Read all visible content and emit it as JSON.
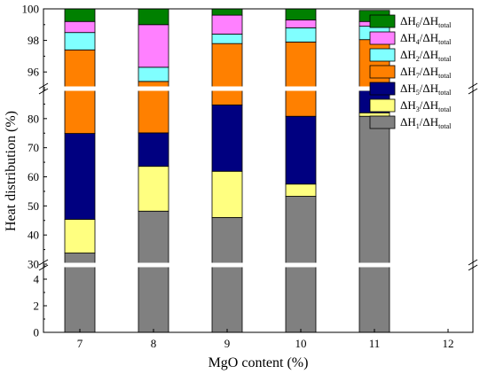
{
  "chart_data": {
    "type": "bar",
    "stacked": true,
    "xlabel": "MgO content (%)",
    "ylabel": "Heat distribution (%)",
    "categories": [
      "7",
      "8",
      "9",
      "10",
      "11"
    ],
    "x_ticks": [
      "7",
      "8",
      "9",
      "10",
      "11",
      "12"
    ],
    "axis_breaks": [
      [
        5,
        30
      ],
      [
        90,
        95
      ]
    ],
    "y_segments": [
      {
        "range": [
          0,
          5
        ],
        "ticks": [
          0,
          2,
          4
        ]
      },
      {
        "range": [
          30,
          90
        ],
        "ticks": [
          30,
          40,
          50,
          60,
          70,
          80
        ]
      },
      {
        "range": [
          95,
          100
        ],
        "ticks": [
          96,
          98,
          100
        ]
      }
    ],
    "grid": false,
    "legend_position": "top-right",
    "series": [
      {
        "label": "ΔH1/ΔHtotal",
        "main": "ΔH",
        "sub": "1",
        "den": "total",
        "color": "#808080",
        "values": [
          33.8,
          48.2,
          46.0,
          53.3,
          80.8
        ]
      },
      {
        "label": "ΔH3/ΔHtotal",
        "main": "ΔH",
        "sub": "3",
        "den": "total",
        "color": "#ffff80",
        "values": [
          11.6,
          15.4,
          15.9,
          4.2,
          1.2
        ]
      },
      {
        "label": "ΔH5/ΔHtotal",
        "main": "ΔH",
        "sub": "5",
        "den": "total",
        "color": "#000080",
        "values": [
          29.5,
          11.5,
          22.8,
          23.3,
          7.6
        ]
      },
      {
        "label": "ΔH7/ΔHtotal",
        "main": "ΔH",
        "sub": "7",
        "den": "total",
        "color": "#ff8000",
        "values": [
          22.5,
          20.3,
          13.1,
          17.1,
          8.45
        ]
      },
      {
        "label": "ΔH2/ΔHtotal",
        "main": "ΔH",
        "sub": "2",
        "den": "total",
        "color": "#80ffff",
        "values": [
          1.1,
          0.9,
          0.6,
          0.9,
          0.85
        ]
      },
      {
        "label": "ΔH4/ΔHtotal",
        "main": "ΔH",
        "sub": "4",
        "den": "total",
        "color": "#ff80ff",
        "values": [
          0.7,
          2.7,
          1.2,
          0.5,
          0.3
        ]
      },
      {
        "label": "ΔH6/ΔHtotal",
        "main": "ΔH",
        "sub": "6",
        "den": "total",
        "color": "#008000",
        "values": [
          0.8,
          1.0,
          0.6,
          0.7,
          0.7
        ]
      }
    ],
    "legend_order": [
      "ΔH6/ΔHtotal",
      "ΔH4/ΔHtotal",
      "ΔH2/ΔHtotal",
      "ΔH7/ΔHtotal",
      "ΔH5/ΔHtotal",
      "ΔH3/ΔHtotal",
      "ΔH1/ΔHtotal"
    ]
  }
}
